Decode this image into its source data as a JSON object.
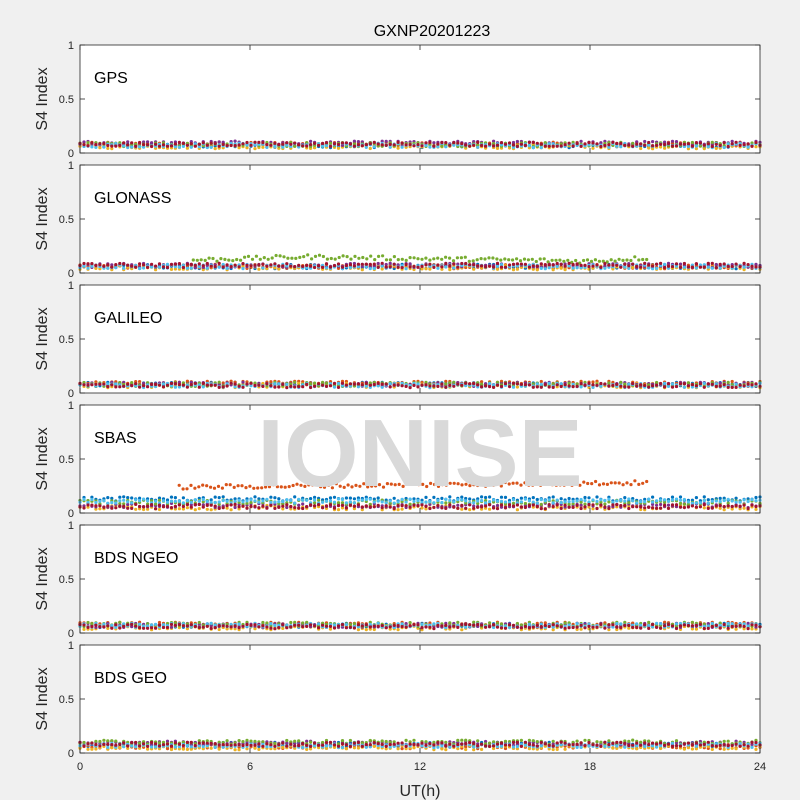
{
  "chart_data": {
    "type": "scatter",
    "title": "GXNP20201223",
    "xlabel": "UT(h)",
    "xlim": [
      0,
      24
    ],
    "xticks": [
      0,
      6,
      12,
      18,
      24
    ],
    "xtick_labels": [
      "0",
      "6",
      "12",
      "18",
      "24"
    ],
    "watermark": "IONISE",
    "grid": false,
    "series_colors": [
      "#0072BD",
      "#D95319",
      "#EDB120",
      "#7E2F8E",
      "#77AC30",
      "#4DBEEE",
      "#A2142F"
    ],
    "panels": [
      {
        "label": "GPS",
        "ylabel": "S4 Index",
        "ylim": [
          0,
          1
        ],
        "yticks": [
          0,
          0.5,
          1
        ],
        "ytick_labels": [
          "0",
          "0.5",
          "1"
        ],
        "series": [
          {
            "x": [
              0,
              24
            ],
            "y": [
              0.07,
              0.07
            ]
          },
          {
            "x": [
              0,
              24
            ],
            "y": [
              0.08,
              0.08
            ]
          },
          {
            "x": [
              0,
              24
            ],
            "y": [
              0.06,
              0.06
            ]
          },
          {
            "x": [
              0,
              24
            ],
            "y": [
              0.09,
              0.09
            ]
          },
          {
            "x": [
              0,
              24
            ],
            "y": [
              0.08,
              0.08
            ]
          },
          {
            "x": [
              0,
              24
            ],
            "y": [
              0.07,
              0.07
            ]
          },
          {
            "x": [
              0,
              24
            ],
            "y": [
              0.08,
              0.08
            ]
          }
        ]
      },
      {
        "label": "GLONASS",
        "ylabel": "S4 Index",
        "ylim": [
          0,
          1
        ],
        "yticks": [
          0,
          0.5,
          1
        ],
        "ytick_labels": [
          "0",
          "0.5",
          "1"
        ],
        "series": [
          {
            "x": [
              0,
              24
            ],
            "y": [
              0.06,
              0.06
            ]
          },
          {
            "x": [
              0,
              24
            ],
            "y": [
              0.06,
              0.06
            ]
          },
          {
            "x": [
              0,
              24
            ],
            "y": [
              0.05,
              0.05
            ]
          },
          {
            "x": [
              0,
              24
            ],
            "y": [
              0.07,
              0.07
            ]
          },
          {
            "x": [
              4,
              8,
              18,
              20
            ],
            "y": [
              0.12,
              0.15,
              0.11,
              0.14
            ]
          },
          {
            "x": [
              0,
              24
            ],
            "y": [
              0.06,
              0.06
            ]
          },
          {
            "x": [
              0,
              24
            ],
            "y": [
              0.07,
              0.07
            ]
          }
        ]
      },
      {
        "label": "GALILEO",
        "ylabel": "S4 Index",
        "ylim": [
          0,
          1
        ],
        "yticks": [
          0,
          0.5,
          1
        ],
        "ytick_labels": [
          "0",
          "0.5",
          "1"
        ],
        "series": [
          {
            "x": [
              0,
              24
            ],
            "y": [
              0.08,
              0.08
            ]
          },
          {
            "x": [
              0,
              24
            ],
            "y": [
              0.09,
              0.09
            ]
          },
          {
            "x": [
              0,
              24
            ],
            "y": [
              0.07,
              0.07
            ]
          },
          {
            "x": [
              0,
              24
            ],
            "y": [
              0.08,
              0.08
            ]
          },
          {
            "x": [
              0,
              24
            ],
            "y": [
              0.08,
              0.08
            ]
          },
          {
            "x": [
              0,
              24
            ],
            "y": [
              0.07,
              0.07
            ]
          },
          {
            "x": [
              0,
              24
            ],
            "y": [
              0.07,
              0.07
            ]
          }
        ]
      },
      {
        "label": "SBAS",
        "ylabel": "S4 Index",
        "ylim": [
          0,
          1
        ],
        "yticks": [
          0,
          0.5,
          1
        ],
        "ytick_labels": [
          "0",
          "0.5",
          "1"
        ],
        "series": [
          {
            "x": [
              0,
              24
            ],
            "y": [
              0.13,
              0.13
            ]
          },
          {
            "x": [
              3.5,
              20
            ],
            "y": [
              0.24,
              0.28
            ]
          },
          {
            "x": [
              0,
              24
            ],
            "y": [
              0.05,
              0.05
            ]
          },
          {
            "x": [
              0,
              24
            ],
            "y": [
              0.07,
              0.07
            ]
          },
          {
            "x": [
              0,
              24
            ],
            "y": [
              0.1,
              0.1
            ]
          },
          {
            "x": [
              0,
              24
            ],
            "y": [
              0.11,
              0.11
            ]
          },
          {
            "x": [
              0,
              24
            ],
            "y": [
              0.06,
              0.06
            ]
          }
        ]
      },
      {
        "label": "BDS NGEO",
        "ylabel": "S4 Index",
        "ylim": [
          0,
          1
        ],
        "yticks": [
          0,
          0.5,
          1
        ],
        "ytick_labels": [
          "0",
          "0.5",
          "1"
        ],
        "series": [
          {
            "x": [
              0,
              24
            ],
            "y": [
              0.07,
              0.07
            ]
          },
          {
            "x": [
              0,
              24
            ],
            "y": [
              0.08,
              0.08
            ]
          },
          {
            "x": [
              0,
              24
            ],
            "y": [
              0.05,
              0.05
            ]
          },
          {
            "x": [
              0,
              24
            ],
            "y": [
              0.07,
              0.07
            ]
          },
          {
            "x": [
              0,
              24
            ],
            "y": [
              0.08,
              0.08
            ]
          },
          {
            "x": [
              0,
              24
            ],
            "y": [
              0.07,
              0.07
            ]
          },
          {
            "x": [
              0,
              24
            ],
            "y": [
              0.06,
              0.06
            ]
          }
        ]
      },
      {
        "label": "BDS GEO",
        "ylabel": "S4 Index",
        "ylim": [
          0,
          1
        ],
        "yticks": [
          0,
          0.5,
          1
        ],
        "ytick_labels": [
          "0",
          "0.5",
          "1"
        ],
        "series": [
          {
            "x": [
              0,
              24
            ],
            "y": [
              0.08,
              0.08
            ]
          },
          {
            "x": [
              0,
              24
            ],
            "y": [
              0.06,
              0.06
            ]
          },
          {
            "x": [
              0,
              24
            ],
            "y": [
              0.05,
              0.05
            ]
          },
          {
            "x": [
              0,
              24
            ],
            "y": [
              0.09,
              0.09
            ]
          },
          {
            "x": [
              0,
              24
            ],
            "y": [
              0.1,
              0.1
            ]
          },
          {
            "x": [
              0,
              24
            ],
            "y": [
              0.07,
              0.07
            ]
          },
          {
            "x": [
              0,
              24
            ],
            "y": [
              0.08,
              0.08
            ]
          }
        ]
      }
    ]
  }
}
